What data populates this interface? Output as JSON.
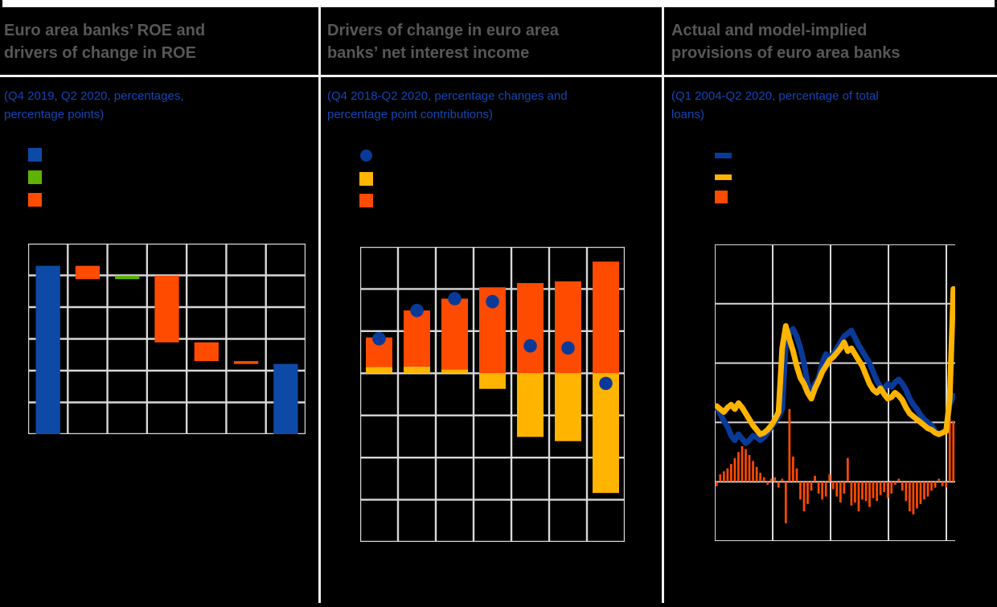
{
  "page": {
    "background": "#000000",
    "top_strip_color": "#ffffff",
    "divider_color": "#f2f2f2"
  },
  "colors": {
    "blue_bar": "#0d4aa6",
    "blue_dark": "#0a3a99",
    "green": "#5eb200",
    "orange": "#ff4b00",
    "yellow": "#ffb400",
    "grid": "#d8d8d8",
    "title": "#575757",
    "subtitle": "#1346b4"
  },
  "panels": [
    {
      "title_line1": "Euro area banks’ ROE and",
      "title_line2": "drivers of change in ROE",
      "subtitle_line1": "(Q4 2019, Q2 2020, percentages,",
      "subtitle_line2": "percentage points)",
      "legend": [
        {
          "shape": "square",
          "color_key": "blue_bar"
        },
        {
          "shape": "square",
          "color_key": "green"
        },
        {
          "shape": "square",
          "color_key": "orange"
        }
      ],
      "chart_data": {
        "type": "bar",
        "subtype": "waterfall",
        "title": "Euro area banks’ ROE and drivers of change in ROE",
        "unit": "percentages, percentage points",
        "ylim": [
          0,
          6
        ],
        "grid_rows": 6,
        "grid_cols": 7,
        "grid": true,
        "bars": [
          {
            "from": 0,
            "to": 5.3,
            "color_key": "blue_bar"
          },
          {
            "from": 4.88,
            "to": 5.3,
            "color_key": "orange"
          },
          {
            "from": 4.88,
            "to": 4.99,
            "color_key": "green"
          },
          {
            "from": 2.89,
            "to": 4.99,
            "color_key": "orange"
          },
          {
            "from": 2.3,
            "to": 2.89,
            "color_key": "orange"
          },
          {
            "from": 2.21,
            "to": 2.3,
            "color_key": "orange"
          },
          {
            "from": 0,
            "to": 2.21,
            "color_key": "blue_bar"
          }
        ]
      }
    },
    {
      "title_line1": "Drivers of change in euro area",
      "title_line2": "banks’ net interest income",
      "subtitle_line1": "(Q4 2018-Q2 2020, percentage changes and",
      "subtitle_line2": "percentage point contributions)",
      "legend": [
        {
          "shape": "circle",
          "color_key": "blue_dark"
        },
        {
          "shape": "square",
          "color_key": "yellow"
        },
        {
          "shape": "square",
          "color_key": "orange"
        }
      ],
      "chart_data": {
        "type": "bar",
        "subtype": "stacked_bar_with_dots",
        "title": "Drivers of change in euro area banks’ net interest income",
        "unit": "percentage changes and percentage point contributions",
        "x_count": 7,
        "ylim": [
          -4,
          3
        ],
        "grid_rows": 7,
        "grid_cols": 7,
        "grid": true,
        "series": [
          {
            "name": "orange-bar",
            "values": [
              0.7,
              1.33,
              1.68,
              2.04,
              2.14,
              2.18,
              2.65
            ]
          },
          {
            "name": "yellow-bar",
            "values": [
              0.15,
              0.16,
              0.09,
              -0.37,
              -1.51,
              -1.61,
              -2.84
            ]
          },
          {
            "name": "blue-dot",
            "values": [
              0.82,
              1.49,
              1.77,
              1.7,
              0.65,
              0.6,
              -0.24
            ]
          }
        ]
      }
    },
    {
      "title_line1": "Actual and model-implied",
      "title_line2": "provisions of euro area banks",
      "subtitle_line1": "(Q1 2004-Q2 2020, percentage of total",
      "subtitle_line2": "loans)",
      "legend": [
        {
          "shape": "line",
          "color_key": "blue_dark"
        },
        {
          "shape": "line",
          "color_key": "yellow"
        },
        {
          "shape": "square",
          "color_key": "orange"
        }
      ],
      "chart_data": {
        "type": "line",
        "subtype": "line_and_bar",
        "title": "Actual and model-implied provisions of euro area banks",
        "unit": "percentage of total loans",
        "x_start": "Q1 2004",
        "x_end": "Q2 2020",
        "points": 66,
        "ylim": [
          -0.4,
          1.6
        ],
        "grid_y_step": 0.4,
        "grid_x_lines": 5,
        "grid": true,
        "series": [
          {
            "name": "blue-line",
            "type": "line",
            "color_key": "blue_dark",
            "values": [
              0.5,
              0.46,
              0.41,
              0.37,
              0.31,
              0.28,
              0.32,
              0.29,
              0.26,
              0.28,
              0.31,
              0.3,
              0.28,
              0.3,
              0.33,
              0.37,
              0.4,
              0.44,
              0.49,
              0.93,
              1.0,
              1.03,
              0.98,
              0.9,
              0.8,
              0.66,
              0.6,
              0.66,
              0.7,
              0.8,
              0.86,
              0.82,
              0.86,
              0.9,
              0.94,
              0.98,
              1.0,
              1.02,
              0.97,
              0.92,
              0.88,
              0.84,
              0.8,
              0.74,
              0.68,
              0.64,
              0.63,
              0.66,
              0.64,
              0.67,
              0.69,
              0.66,
              0.62,
              0.56,
              0.52,
              0.49,
              0.45,
              0.42,
              0.4,
              0.38,
              0.34,
              0.32,
              0.33,
              0.35,
              0.52,
              0.58
            ]
          },
          {
            "name": "yellow-line",
            "type": "line",
            "color_key": "yellow",
            "values": [
              0.51,
              0.49,
              0.47,
              0.5,
              0.52,
              0.49,
              0.53,
              0.5,
              0.46,
              0.42,
              0.38,
              0.35,
              0.32,
              0.33,
              0.35,
              0.38,
              0.42,
              0.47,
              0.9,
              1.05,
              0.96,
              0.88,
              0.78,
              0.7,
              0.66,
              0.6,
              0.56,
              0.63,
              0.68,
              0.74,
              0.78,
              0.82,
              0.84,
              0.87,
              0.9,
              0.94,
              0.88,
              0.9,
              0.86,
              0.82,
              0.78,
              0.72,
              0.66,
              0.62,
              0.6,
              0.63,
              0.59,
              0.56,
              0.57,
              0.6,
              0.58,
              0.55,
              0.5,
              0.46,
              0.44,
              0.42,
              0.4,
              0.38,
              0.36,
              0.35,
              0.33,
              0.32,
              0.33,
              0.34,
              0.56,
              1.3
            ]
          },
          {
            "name": "orange-bar",
            "type": "bar",
            "color_key": "orange",
            "values": [
              -0.03,
              0.05,
              0.07,
              0.09,
              0.12,
              0.16,
              0.2,
              0.24,
              0.22,
              0.18,
              0.14,
              0.1,
              0.06,
              0.03,
              -0.02,
              0.02,
              0.03,
              -0.04,
              0.02,
              -0.28,
              0.49,
              0.17,
              0.09,
              -0.12,
              -0.2,
              -0.15,
              -0.06,
              0.04,
              -0.08,
              -0.12,
              -0.1,
              0.05,
              -0.05,
              -0.1,
              -0.14,
              -0.08,
              0.16,
              -0.16,
              -0.14,
              -0.2,
              -0.12,
              -0.13,
              -0.17,
              -0.11,
              -0.13,
              -0.09,
              -0.07,
              -0.11,
              -0.08,
              -0.02,
              0.02,
              -0.06,
              -0.13,
              -0.2,
              -0.22,
              -0.18,
              -0.15,
              -0.12,
              -0.1,
              -0.06,
              -0.04,
              0.02,
              -0.03,
              -0.04,
              0.73,
              0.41
            ]
          }
        ]
      }
    }
  ]
}
